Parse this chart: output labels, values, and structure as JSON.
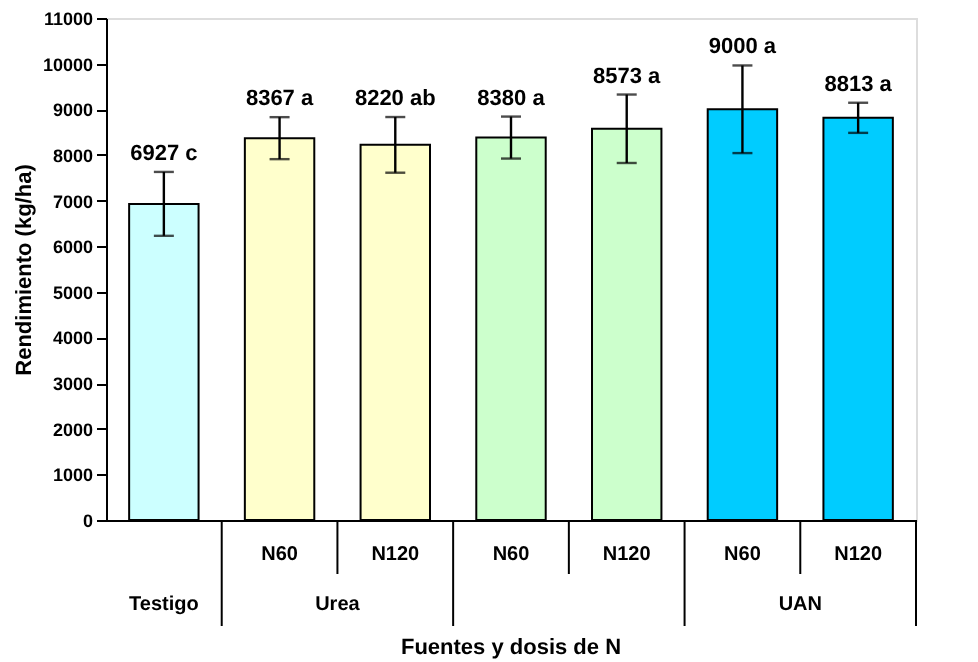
{
  "chart_data": {
    "type": "bar",
    "ylabel": "Rendimiento (kg/ha)",
    "xlabel": "Fuentes y dosis de N",
    "categories": [
      null,
      "N60",
      "N120",
      "N60",
      "N120",
      "N60",
      "N120"
    ],
    "values": [
      6927,
      8367,
      8220,
      8380,
      8573,
      9000,
      8813
    ],
    "errors": [
      700,
      460,
      610,
      460,
      750,
      960,
      330
    ],
    "colors": [
      "#ccffff",
      "#ffffcc",
      "#ffffcc",
      "#ccffcc",
      "#ccffcc",
      "#00ccff",
      "#00ccff"
    ],
    "value_labels": [
      "6927 c",
      "8367 a",
      "8220  ab",
      "8380 a",
      "8573 a",
      "9000 a",
      "8813 a"
    ],
    "annotations": [
      "Testigo",
      "Urea",
      "UAN"
    ],
    "ylim": [
      0,
      11000
    ],
    "yticks": [
      0,
      1000,
      2000,
      3000,
      4000,
      5000,
      6000,
      7000,
      8000,
      9000,
      10000,
      11000
    ]
  }
}
